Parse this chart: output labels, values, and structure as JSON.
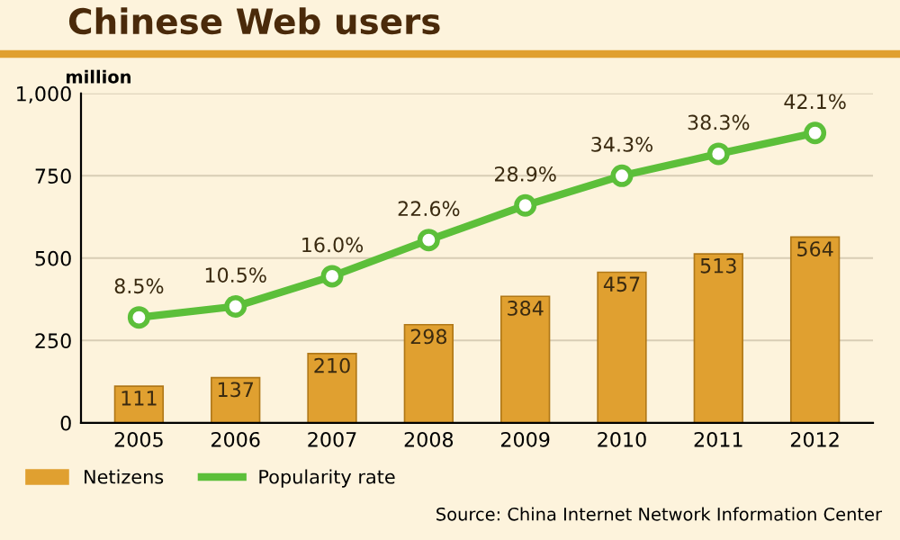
{
  "chart_data": {
    "type": "bar",
    "title": "Chinese Web users",
    "ylabel": "million",
    "categories": [
      "2005",
      "2006",
      "2007",
      "2008",
      "2009",
      "2010",
      "2011",
      "2012"
    ],
    "series": [
      {
        "name": "Netizens",
        "color": "#e0a030",
        "values": [
          111,
          137,
          210,
          298,
          384,
          457,
          513,
          564
        ]
      },
      {
        "name": "Popularity rate",
        "type": "line",
        "axis": "y2",
        "color": "#5cbf3a",
        "values": [
          8.5,
          10.5,
          16.0,
          22.6,
          28.9,
          34.3,
          38.3,
          42.1
        ],
        "value_labels": [
          "8.5%",
          "10.5%",
          "16.0%",
          "22.6%",
          "28.9%",
          "34.3%",
          "38.3%",
          "42.1%"
        ]
      }
    ],
    "ylim": [
      0,
      1000
    ],
    "yticks": [
      0,
      250,
      500,
      750,
      {
        "value": 1000,
        "label": "1,000"
      }
    ],
    "y2lim": [
      -10.7,
      49.3
    ],
    "tick_labels": [
      "x",
      "y"
    ],
    "grid": "y",
    "data_labels": true,
    "marker": "circle",
    "legend": "bottom left",
    "annotations": [
      "Source: China Internet Network Information Center"
    ]
  }
}
